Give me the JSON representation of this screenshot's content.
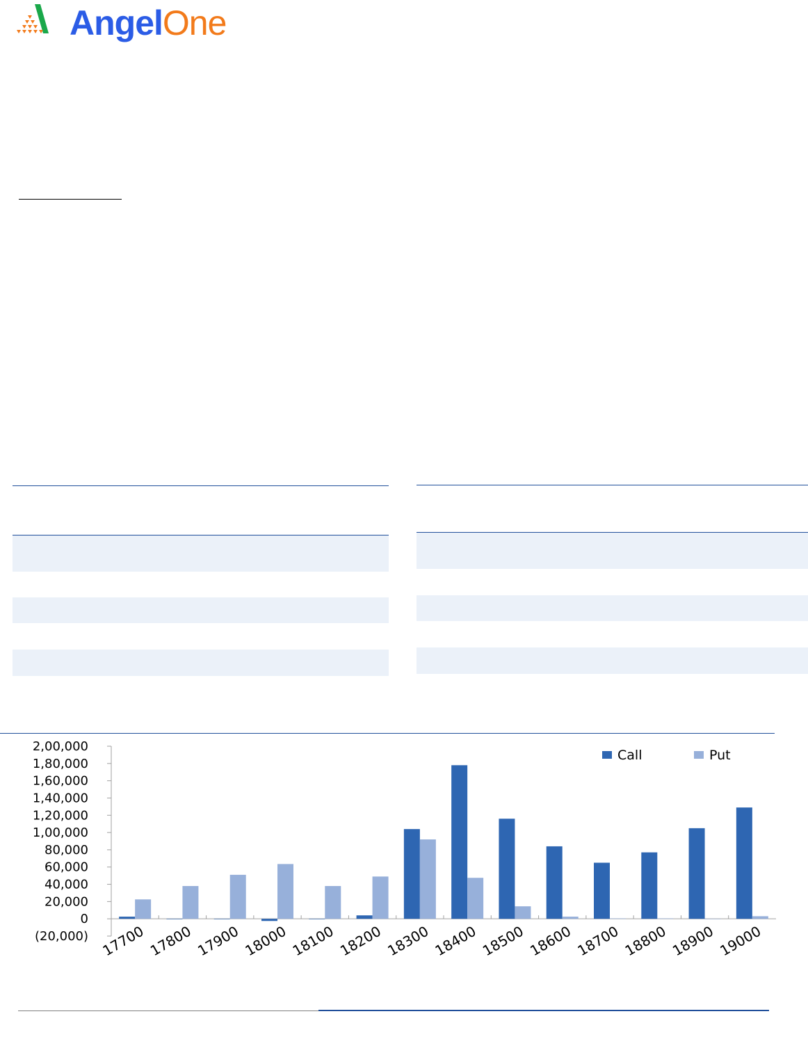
{
  "logo": {
    "part1": "Angel",
    "part2": "One",
    "colors": {
      "blue": "#2b5ce6",
      "orange": "#f27a1a",
      "green": "#1aa84a"
    }
  },
  "chart_data": {
    "type": "bar",
    "title": "",
    "xlabel": "",
    "ylabel": "",
    "categories": [
      "17700",
      "17800",
      "17900",
      "18000",
      "18100",
      "18200",
      "18300",
      "18400",
      "18500",
      "18600",
      "18700",
      "18800",
      "18900",
      "19000"
    ],
    "series": [
      {
        "name": "Call",
        "color": "#2e66b2",
        "values": [
          2500,
          -500,
          -500,
          -2500,
          -500,
          4000,
          104000,
          178000,
          116000,
          84000,
          65000,
          77000,
          105000,
          129000
        ]
      },
      {
        "name": "Put",
        "color": "#97b0da",
        "values": [
          22500,
          38000,
          51000,
          63500,
          38000,
          49000,
          92000,
          47500,
          14500,
          2500,
          500,
          500,
          0,
          3000
        ]
      }
    ],
    "ylim": [
      -20000,
      200000
    ],
    "yticks": [
      -20000,
      0,
      20000,
      40000,
      60000,
      80000,
      100000,
      120000,
      140000,
      160000,
      180000,
      200000
    ],
    "ytick_labels": [
      "(20,000)",
      "0",
      "20,000",
      "40,000",
      "60,000",
      "80,000",
      "1,00,000",
      "1,20,000",
      "1,40,000",
      "1,60,000",
      "1,80,000",
      "2,00,000"
    ],
    "legend": "top-right",
    "grid": false
  }
}
